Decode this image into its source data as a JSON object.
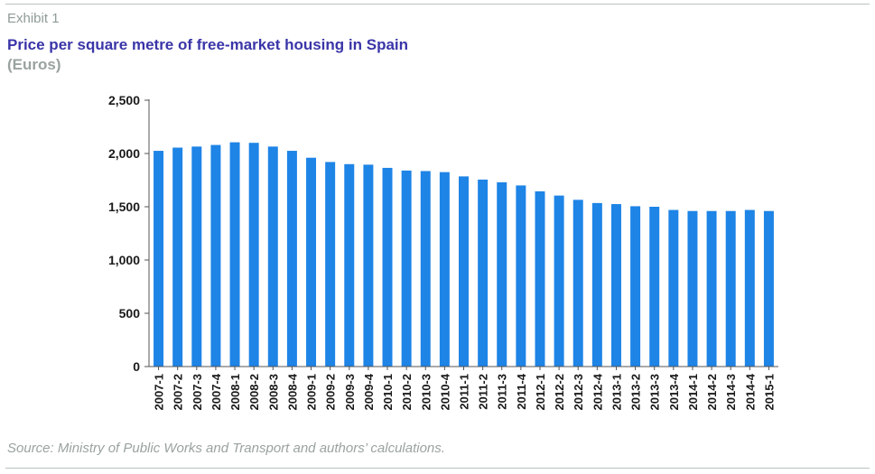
{
  "header": {
    "exhibit": "Exhibit 1",
    "title": "Price per square metre of free-market housing in Spain",
    "unit": "(Euros)"
  },
  "footer": {
    "source": "Source: Ministry of Public Works and Transport and authors’ calculations."
  },
  "colors": {
    "bar": "#1e84e6",
    "axis": "#555555",
    "title": "#3a35a8",
    "muted": "#9aa39e"
  },
  "chart_data": {
    "type": "bar",
    "title": "Price per square metre of free-market housing in Spain",
    "ylabel": "(Euros)",
    "xlabel": "",
    "ylim": [
      0,
      2500
    ],
    "yticks": [
      0,
      500,
      1000,
      1500,
      2000,
      2500
    ],
    "ytick_labels": [
      "0",
      "500",
      "1,000",
      "1,500",
      "2,000",
      "2,500"
    ],
    "grid": false,
    "categories": [
      "2007-1",
      "2007-2",
      "2007-3",
      "2007-4",
      "2008-1",
      "2008-2",
      "2008-3",
      "2008-4",
      "2009-1",
      "2009-2",
      "2009-3",
      "2009-4",
      "2010-1",
      "2010-2",
      "2010-3",
      "2010-4",
      "2011-1",
      "2011-2",
      "2011-3",
      "2011-4",
      "2012-1",
      "2012-2",
      "2012-3",
      "2012-4",
      "2013-1",
      "2013-2",
      "2013-3",
      "2013-4",
      "2014-1",
      "2014-2",
      "2014-3",
      "2014-4",
      "2015-1"
    ],
    "values": [
      2025,
      2055,
      2065,
      2080,
      2105,
      2100,
      2065,
      2025,
      1960,
      1920,
      1900,
      1895,
      1865,
      1840,
      1835,
      1825,
      1785,
      1755,
      1730,
      1700,
      1645,
      1605,
      1565,
      1535,
      1525,
      1505,
      1500,
      1470,
      1460,
      1460,
      1460,
      1470,
      1460
    ]
  }
}
